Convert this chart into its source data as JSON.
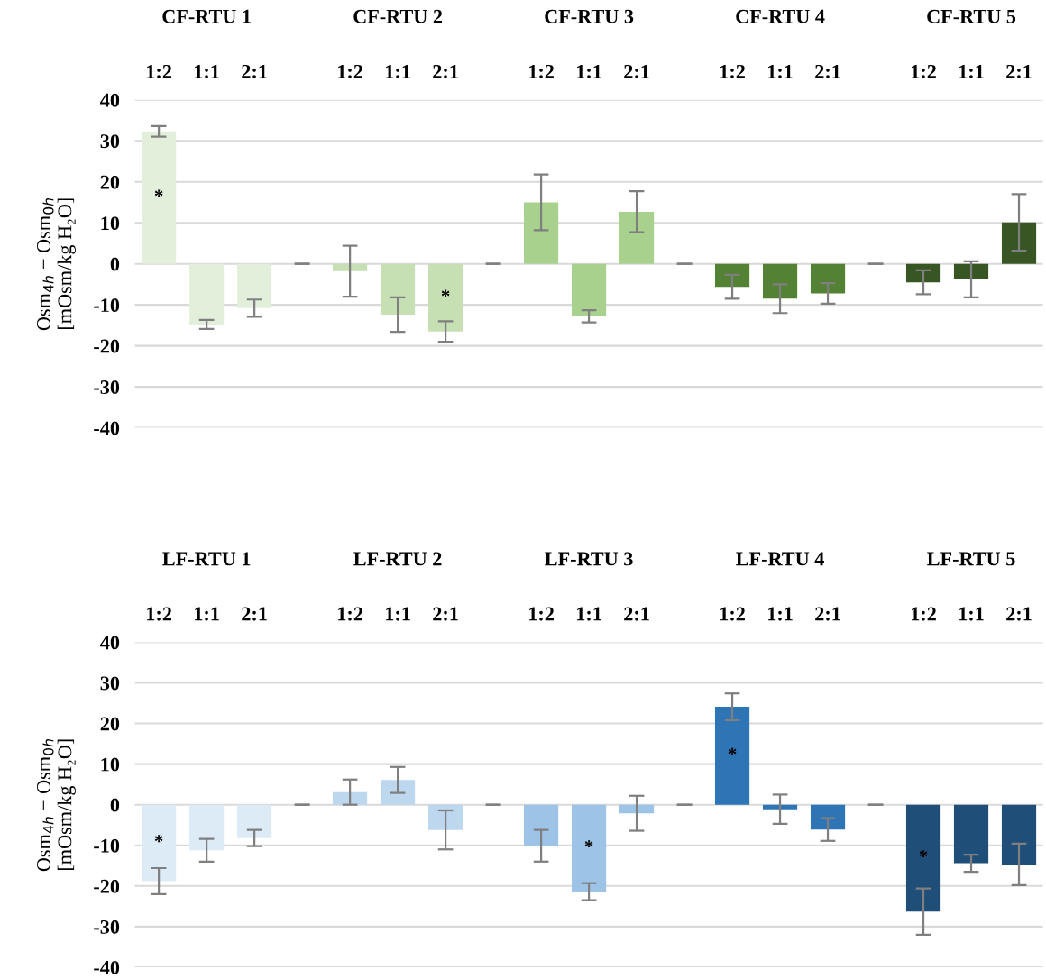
{
  "chart_data": [
    {
      "type": "bar",
      "categories": [
        "1:2",
        "1:1",
        "2:1",
        null,
        "1:2",
        "1:1",
        "2:1",
        null,
        "1:2",
        "1:1",
        "2:1",
        null,
        "1:2",
        "1:1",
        "2:1",
        null,
        "1:2",
        "1:1",
        "2:1"
      ],
      "values": [
        32.3,
        -14.8,
        -10.8,
        0,
        -1.8,
        -12.4,
        -16.5,
        0,
        15.0,
        -12.8,
        12.7,
        0,
        -5.6,
        -8.5,
        -7.2,
        0,
        -4.5,
        -3.8,
        10.1
      ],
      "errors": [
        1.3,
        1.1,
        2.1,
        0,
        6.2,
        4.2,
        2.5,
        0,
        6.8,
        1.5,
        5.0,
        0,
        2.9,
        3.5,
        2.5,
        0,
        2.9,
        4.4,
        6.9
      ],
      "colors": [
        "#e2efda",
        "#e2efda",
        "#e2efda",
        "#d9d9d9",
        "#c6e0b4",
        "#c6e0b4",
        "#c6e0b4",
        "#d9d9d9",
        "#a9d18e",
        "#a9d18e",
        "#a9d18e",
        "#d9d9d9",
        "#548235",
        "#548235",
        "#548235",
        "#d9d9d9",
        "#375623",
        "#375623",
        "#375623"
      ],
      "value_labels": [
        "*",
        null,
        null,
        null,
        null,
        null,
        "*",
        null,
        null,
        null,
        null,
        null,
        null,
        null,
        null,
        null,
        null,
        null,
        null
      ],
      "ylabel": "Osm$_{4h}$ − Osm$_{0h}$\n[mOsm/kg H₂O]",
      "annotations": [
        "CF-RTU 1",
        "CF-RTU 2",
        "CF-RTU 3",
        "CF-RTU 4",
        "CF-RTU 5"
      ],
      "ylim": [
        -40,
        40
      ],
      "yticks": [
        -40,
        -30,
        -20,
        -10,
        0,
        10,
        20,
        30,
        40
      ],
      "grid": "y",
      "legend": false
    },
    {
      "type": "bar",
      "categories": [
        "1:2",
        "1:1",
        "2:1",
        null,
        "1:2",
        "1:1",
        "2:1",
        null,
        "1:2",
        "1:1",
        "2:1",
        null,
        "1:2",
        "1:1",
        "2:1",
        null,
        "1:2",
        "1:1",
        "2:1"
      ],
      "values": [
        -18.8,
        -11.2,
        -8.2,
        0,
        3.1,
        6.1,
        -6.2,
        0,
        -10.1,
        -21.4,
        -2.1,
        0,
        24.1,
        -1.1,
        -6.1,
        0,
        -26.3,
        -14.4,
        -14.7
      ],
      "errors": [
        3.2,
        2.8,
        2.0,
        0,
        3.1,
        3.2,
        4.8,
        0,
        3.9,
        2.1,
        4.3,
        0,
        3.3,
        3.6,
        2.8,
        0,
        5.7,
        2.1,
        5.1
      ],
      "colors": [
        "#ddebf7",
        "#ddebf7",
        "#ddebf7",
        "#d9d9d9",
        "#bdd7ee",
        "#bdd7ee",
        "#bdd7ee",
        "#d9d9d9",
        "#9dc3e6",
        "#9dc3e6",
        "#9dc3e6",
        "#d9d9d9",
        "#2e75b6",
        "#2e75b6",
        "#2e75b6",
        "#d9d9d9",
        "#1f4e79",
        "#1f4e79",
        "#1f4e79"
      ],
      "value_labels": [
        "*",
        null,
        null,
        null,
        null,
        null,
        null,
        null,
        null,
        "*",
        null,
        null,
        "*",
        null,
        null,
        null,
        "*",
        null,
        null
      ],
      "ylabel": "Osm$_{4h}$ − Osm$_{0h}$\n[mOsm/kg H₂O]",
      "annotations": [
        "LF-RTU 1",
        "LF-RTU 2",
        "LF-RTU 3",
        "LF-RTU 4",
        "LF-RTU 5"
      ],
      "ylim": [
        -40,
        40
      ],
      "yticks": [
        -40,
        -30,
        -20,
        -10,
        0,
        10,
        20,
        30,
        40
      ],
      "grid": "y",
      "legend": false
    }
  ]
}
